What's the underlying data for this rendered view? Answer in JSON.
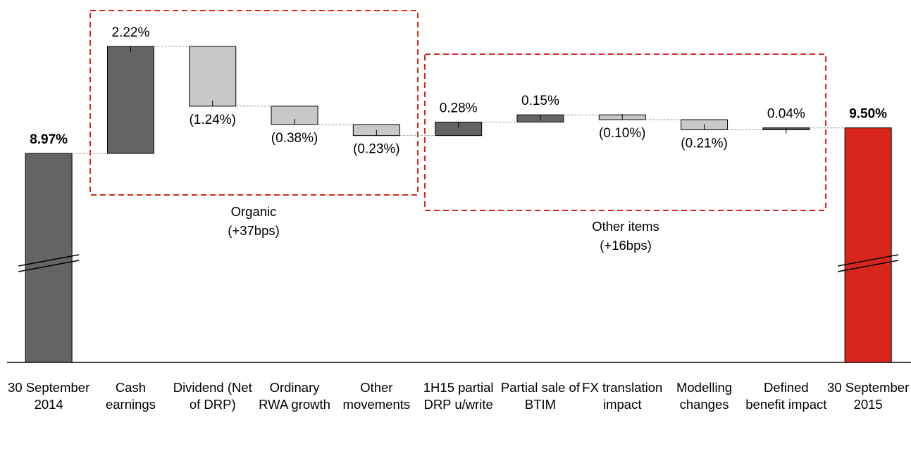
{
  "chart_data": {
    "type": "waterfall",
    "categories": [
      "30 September 2014",
      "Cash earnings",
      "Dividend (Net of DRP)",
      "Ordinary RWA growth",
      "Other movements",
      "1H15 partial DRP u/write",
      "Partial sale of BTIM",
      "FX translation impact",
      "Modelling changes",
      "Defined benefit impact",
      "30 September 2015"
    ],
    "values": [
      8.97,
      2.22,
      -1.24,
      -0.38,
      -0.23,
      0.28,
      0.15,
      -0.1,
      -0.21,
      0.04,
      9.5
    ],
    "value_labels": [
      "8.97%",
      "2.22%",
      "(1.24%)",
      "(0.38%)",
      "(0.23%)",
      "0.28%",
      "0.15%",
      "(0.10%)",
      "(0.21%)",
      "0.04%",
      "9.50%"
    ],
    "measure": [
      "absolute",
      "relative",
      "relative",
      "relative",
      "relative",
      "relative",
      "relative",
      "relative",
      "relative",
      "relative",
      "absolute"
    ],
    "colors": [
      "#646464",
      "#646464",
      "#c8c8c8",
      "#c8c8c8",
      "#c8c8c8",
      "#646464",
      "#646464",
      "#c8c8c8",
      "#c8c8c8",
      "#646464",
      "#d9261c"
    ],
    "groups": [
      {
        "label": "Organic",
        "note": "(+37bps)"
      },
      {
        "label": "Other items",
        "note": "(+16bps)"
      }
    ]
  }
}
